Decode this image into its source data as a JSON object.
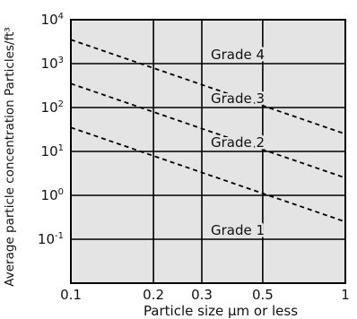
{
  "chart_data": {
    "type": "line",
    "xscale": "log",
    "yscale": "log",
    "xlim": [
      0.1,
      1
    ],
    "ylim": [
      0.01,
      10000
    ],
    "xlabel": "Particle size  µm or less",
    "ylabel": "Average particle concentration  Particles/ft³",
    "x_ticks": [
      {
        "value": 0.1,
        "label": "0.1"
      },
      {
        "value": 0.2,
        "label": "0.2"
      },
      {
        "value": 0.3,
        "label": "0.3"
      },
      {
        "value": 0.5,
        "label": "0.5"
      },
      {
        "value": 1,
        "label": "1"
      }
    ],
    "y_ticks": [
      {
        "value": 0.1,
        "base": "10",
        "exp": "-1"
      },
      {
        "value": 1,
        "base": "10",
        "exp": "0"
      },
      {
        "value": 10,
        "base": "10",
        "exp": "1"
      },
      {
        "value": 100,
        "base": "10",
        "exp": "2"
      },
      {
        "value": 1000,
        "base": "10",
        "exp": "3"
      },
      {
        "value": 10000,
        "base": "10",
        "exp": "4"
      }
    ],
    "grid": true,
    "background_color": "#e4e4e4",
    "line_color": "#000000",
    "line_style": "dashed",
    "series": [
      {
        "x": [
          0.1,
          1
        ],
        "y": [
          35,
          0.25
        ]
      },
      {
        "x": [
          0.1,
          1
        ],
        "y": [
          350,
          2.5
        ]
      },
      {
        "x": [
          0.1,
          1
        ],
        "y": [
          3500,
          25
        ]
      }
    ],
    "annotations": [
      {
        "text": "Grade 4",
        "x": 0.3,
        "y": 1000
      },
      {
        "text": "Grade 3",
        "x": 0.3,
        "y": 100
      },
      {
        "text": "Grade 2",
        "x": 0.3,
        "y": 10
      },
      {
        "text": "Grade 1",
        "x": 0.3,
        "y": 0.1
      }
    ]
  }
}
